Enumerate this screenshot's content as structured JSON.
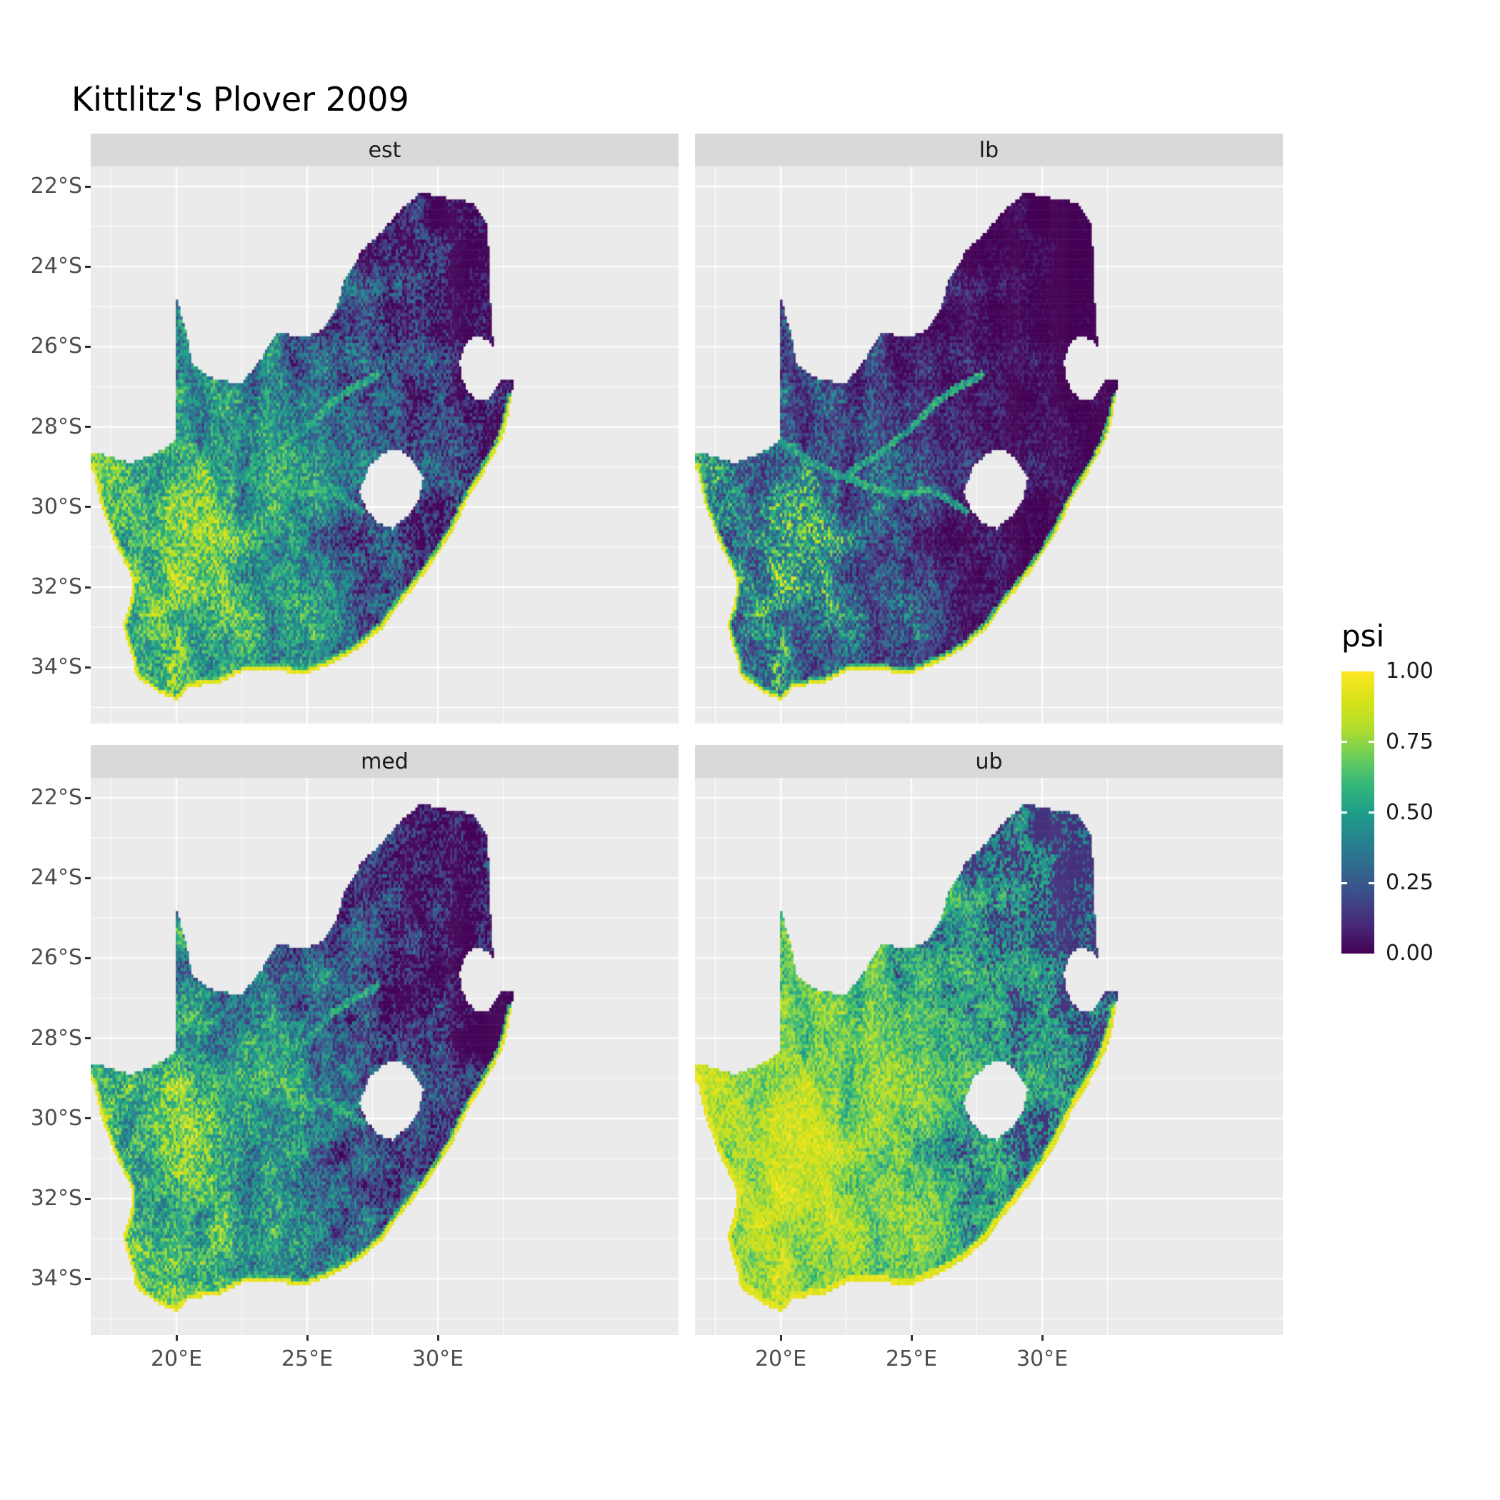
{
  "title": "Kittlitz's Plover 2009",
  "chart_data": {
    "type": "heatmap",
    "subtype": "faceted-raster-occupancy-map",
    "region": "South Africa",
    "cell_size_deg": 0.0833,
    "facets": [
      {
        "label": "est",
        "exponent": 1.0,
        "seed": 7,
        "rim": 0.1
      },
      {
        "label": "lb",
        "exponent": 2.1,
        "seed": 7,
        "rim": 0.08
      },
      {
        "label": "med",
        "exponent": 1.05,
        "seed": 13,
        "rim": 0.1
      },
      {
        "label": "ub",
        "exponent": 0.45,
        "seed": 7,
        "rim": 0.16
      }
    ],
    "x_axis": {
      "ticks": [
        20,
        25,
        30
      ],
      "labels": [
        "20°E",
        "25°E",
        "30°E"
      ],
      "minor": [
        17.5,
        22.5,
        27.5,
        32.5
      ],
      "range": [
        16.72,
        39.2
      ]
    },
    "y_axis": {
      "ticks": [
        22,
        24,
        26,
        28,
        30,
        32,
        34
      ],
      "labels": [
        "22°S",
        "24°S",
        "26°S",
        "28°S",
        "30°S",
        "32°S",
        "34°S"
      ],
      "minor": [
        23,
        25,
        27,
        29,
        31,
        33,
        35
      ],
      "range": [
        21.5,
        35.4
      ]
    },
    "legend": {
      "title": "psi",
      "ticks": [
        "1.00",
        "0.75",
        "0.50",
        "0.25",
        "0.00"
      ],
      "tick_values": [
        1.0,
        0.75,
        0.5,
        0.25,
        0.0
      ],
      "range": [
        0,
        1
      ]
    },
    "colormap": {
      "name": "viridis",
      "stops": [
        [
          0.0,
          "#440154"
        ],
        [
          0.1,
          "#482878"
        ],
        [
          0.2,
          "#3E4A89"
        ],
        [
          0.3,
          "#31688E"
        ],
        [
          0.4,
          "#26828E"
        ],
        [
          0.5,
          "#1F9E89"
        ],
        [
          0.6,
          "#35B779"
        ],
        [
          0.7,
          "#6DCD59"
        ],
        [
          0.8,
          "#B4DE2C"
        ],
        [
          0.9,
          "#D8E219"
        ],
        [
          1.0,
          "#FDE725"
        ]
      ]
    },
    "map": {
      "border": [
        [
          16.45,
          28.6
        ],
        [
          17.4,
          28.72
        ],
        [
          18.2,
          28.9
        ],
        [
          19.0,
          28.72
        ],
        [
          19.6,
          28.5
        ],
        [
          19.99,
          28.3
        ],
        [
          19.99,
          24.77
        ],
        [
          20.35,
          25.6
        ],
        [
          20.62,
          26.45
        ],
        [
          21.5,
          26.85
        ],
        [
          22.5,
          26.88
        ],
        [
          23.2,
          26.35
        ],
        [
          23.9,
          25.62
        ],
        [
          24.8,
          25.78
        ],
        [
          25.55,
          25.6
        ],
        [
          26.1,
          25.05
        ],
        [
          26.45,
          24.3
        ],
        [
          27.1,
          23.6
        ],
        [
          27.9,
          23.1
        ],
        [
          28.6,
          22.55
        ],
        [
          29.35,
          22.15
        ],
        [
          30.3,
          22.28
        ],
        [
          31.3,
          22.4
        ],
        [
          31.9,
          23.0
        ],
        [
          31.95,
          23.9
        ],
        [
          32.0,
          24.8
        ],
        [
          32.08,
          25.6
        ],
        [
          32.13,
          25.97
        ],
        [
          31.85,
          25.82
        ],
        [
          31.4,
          25.72
        ],
        [
          31.0,
          25.98
        ],
        [
          30.82,
          26.4
        ],
        [
          30.92,
          26.82
        ],
        [
          31.12,
          27.1
        ],
        [
          31.45,
          27.3
        ],
        [
          31.97,
          27.33
        ],
        [
          32.2,
          27.05
        ],
        [
          32.35,
          26.86
        ],
        [
          32.89,
          26.86
        ]
      ],
      "coast": [
        [
          32.8,
          27.3
        ],
        [
          32.65,
          27.85
        ],
        [
          32.4,
          28.35
        ],
        [
          32.05,
          28.8
        ],
        [
          31.6,
          29.3
        ],
        [
          31.05,
          29.9
        ],
        [
          30.6,
          30.55
        ],
        [
          30.0,
          31.2
        ],
        [
          29.2,
          31.9
        ],
        [
          28.5,
          32.45
        ],
        [
          27.9,
          33.0
        ],
        [
          27.0,
          33.52
        ],
        [
          26.4,
          33.75
        ],
        [
          25.65,
          33.98
        ],
        [
          24.9,
          34.18
        ],
        [
          23.6,
          34.05
        ],
        [
          22.55,
          34.1
        ],
        [
          21.6,
          34.4
        ],
        [
          20.5,
          34.48
        ],
        [
          20.0,
          34.82
        ],
        [
          19.3,
          34.62
        ],
        [
          18.8,
          34.38
        ],
        [
          18.44,
          34.2
        ],
        [
          18.4,
          33.9
        ],
        [
          18.15,
          33.4
        ],
        [
          17.95,
          32.95
        ],
        [
          18.25,
          32.4
        ],
        [
          18.32,
          31.8
        ],
        [
          17.6,
          30.8
        ],
        [
          17.1,
          29.9
        ],
        [
          16.88,
          29.2
        ],
        [
          16.45,
          28.6
        ]
      ],
      "lesotho": [
        [
          27.0,
          29.6
        ],
        [
          27.35,
          28.98
        ],
        [
          27.95,
          28.62
        ],
        [
          28.6,
          28.58
        ],
        [
          29.1,
          28.88
        ],
        [
          29.45,
          29.3
        ],
        [
          29.25,
          29.85
        ],
        [
          28.85,
          30.2
        ],
        [
          28.25,
          30.55
        ],
        [
          27.65,
          30.38
        ],
        [
          27.22,
          30.02
        ]
      ],
      "rivers": [
        [
          [
            19.99,
            28.35
          ],
          [
            21.2,
            28.9
          ],
          [
            22.4,
            29.25
          ],
          [
            23.6,
            29.55
          ],
          [
            24.8,
            29.7
          ],
          [
            25.7,
            29.55
          ],
          [
            26.6,
            29.9
          ],
          [
            27.1,
            30.1
          ]
        ],
        [
          [
            27.7,
            26.7
          ],
          [
            26.8,
            27.0
          ],
          [
            25.9,
            27.4
          ],
          [
            24.9,
            28.1
          ],
          [
            23.9,
            28.6
          ],
          [
            22.4,
            29.25
          ]
        ]
      ]
    }
  }
}
